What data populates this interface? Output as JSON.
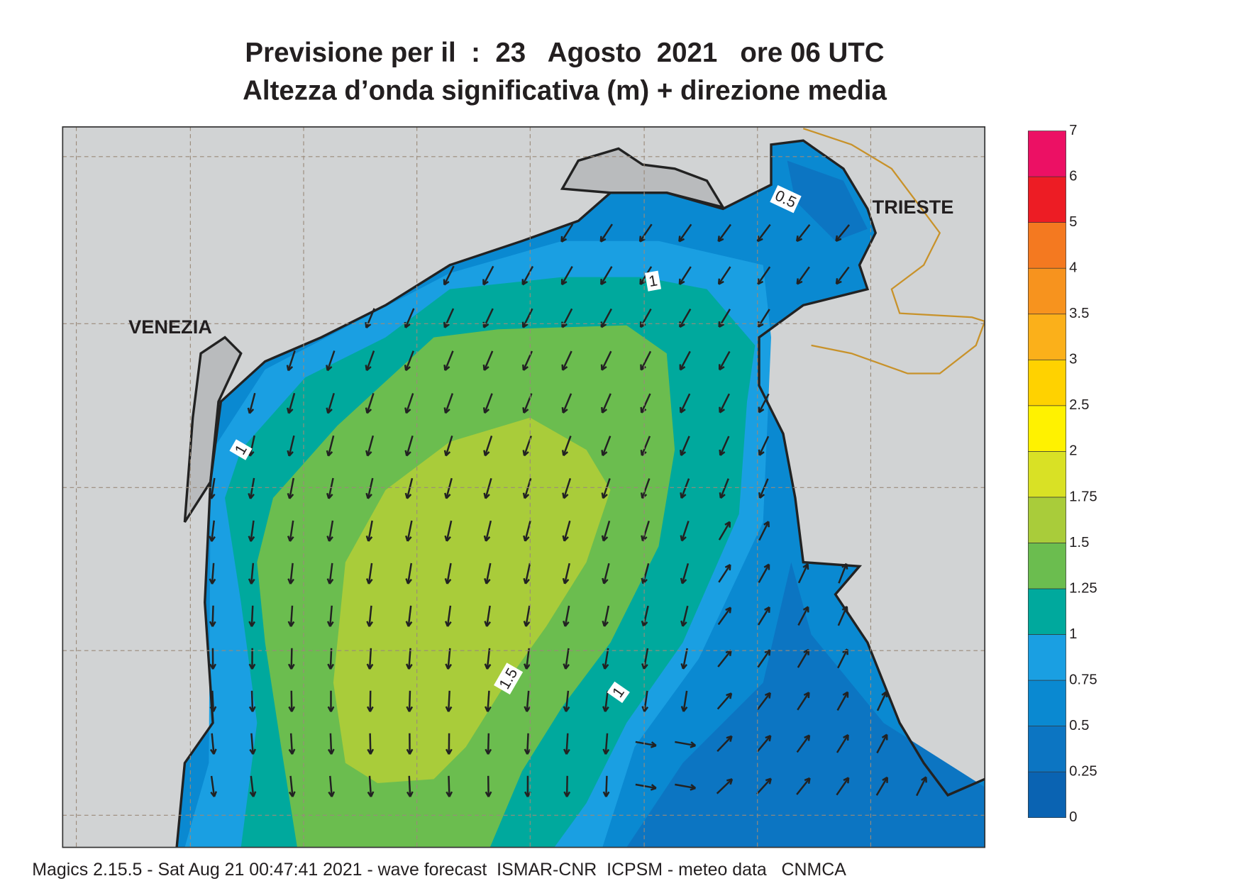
{
  "header": {
    "title_line_1": "Previsione per il  :  23   Agosto  2021   ore 06 UTC",
    "title_line_2": "Altezza d’onda significativa (m) + direzione media"
  },
  "map": {
    "places": [
      "VENEZIA",
      "TRIESTE"
    ],
    "contour_labels": [
      "0.5",
      "1",
      "1",
      "1.5",
      "1"
    ]
  },
  "colorbar": {
    "labels": [
      "0",
      "0.25",
      "0.5",
      "0.75",
      "1",
      "1.25",
      "1.5",
      "1.75",
      "2",
      "2.5",
      "3",
      "3.5",
      "4",
      "5",
      "6",
      "7"
    ],
    "colors": [
      "#0a63b2",
      "#0c75c2",
      "#0a89d1",
      "#1a9fe2",
      "#00a99d",
      "#6bbd4f",
      "#a9cc3a",
      "#d9e125",
      "#fff200",
      "#ffd200",
      "#fbb01a",
      "#f7931e",
      "#f47920",
      "#ed1c24",
      "#ec1064"
    ]
  },
  "footer": "Magics 2.15.5 - Sat Aug 21 00:47:41 2021 - wave forecast  ISMAR-CNR  ICPSM - meteo data   CNMCA"
}
